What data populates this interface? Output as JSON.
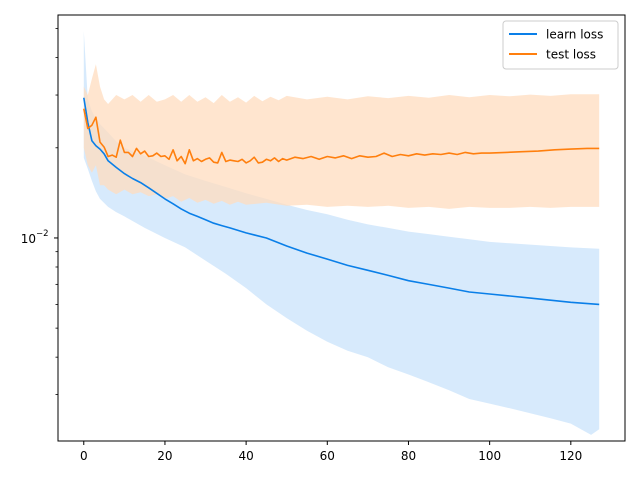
{
  "chart_data": {
    "type": "line",
    "title": "",
    "xlabel": "",
    "ylabel": "",
    "xlim": [
      -6.35,
      133.35
    ],
    "xticks": [
      0,
      20,
      40,
      60,
      80,
      100,
      120
    ],
    "yscale": "log",
    "ylim": [
      0.0021,
      0.0555
    ],
    "yticks": [
      0.01
    ],
    "ytick_labels": [
      "10",
      "−2"
    ],
    "grid": false,
    "legend": "top-right",
    "series": [
      {
        "name": "learn loss",
        "color": "#0a7fe8",
        "band_color": "#c9e3fb",
        "points": [
          [
            0,
            0.0294
          ],
          [
            1,
            0.0243
          ],
          [
            2,
            0.0211
          ],
          [
            3,
            0.0203
          ],
          [
            4,
            0.0198
          ],
          [
            5,
            0.0191
          ],
          [
            6,
            0.0181
          ],
          [
            8,
            0.0172
          ],
          [
            10,
            0.0164
          ],
          [
            12,
            0.0158
          ],
          [
            14,
            0.0153
          ],
          [
            16,
            0.0147
          ],
          [
            18,
            0.0141
          ],
          [
            20,
            0.0135
          ],
          [
            22,
            0.013
          ],
          [
            24,
            0.0125
          ],
          [
            26,
            0.0121
          ],
          [
            28,
            0.0118
          ],
          [
            30,
            0.0115
          ],
          [
            32,
            0.0112
          ],
          [
            34,
            0.011
          ],
          [
            36,
            0.0108
          ],
          [
            38,
            0.0106
          ],
          [
            40,
            0.0104
          ],
          [
            45,
            0.01
          ],
          [
            50,
            0.0094
          ],
          [
            55,
            0.0089
          ],
          [
            60,
            0.0085
          ],
          [
            65,
            0.0081
          ],
          [
            70,
            0.0078
          ],
          [
            75,
            0.0075
          ],
          [
            80,
            0.0072
          ],
          [
            85,
            0.007
          ],
          [
            90,
            0.0068
          ],
          [
            95,
            0.0066
          ],
          [
            100,
            0.0065
          ],
          [
            105,
            0.0064
          ],
          [
            110,
            0.0063
          ],
          [
            115,
            0.0062
          ],
          [
            120,
            0.0061
          ],
          [
            127,
            0.006
          ]
        ],
        "band_upper": [
          [
            0,
            0.049
          ],
          [
            1,
            0.029
          ],
          [
            2,
            0.0265
          ],
          [
            3,
            0.025
          ],
          [
            4,
            0.024
          ],
          [
            6,
            0.0225
          ],
          [
            8,
            0.021
          ],
          [
            10,
            0.02
          ],
          [
            15,
            0.0188
          ],
          [
            20,
            0.0175
          ],
          [
            25,
            0.0163
          ],
          [
            30,
            0.0155
          ],
          [
            35,
            0.0148
          ],
          [
            40,
            0.0141
          ],
          [
            45,
            0.0135
          ],
          [
            50,
            0.0129
          ],
          [
            55,
            0.0124
          ],
          [
            60,
            0.012
          ],
          [
            65,
            0.0115
          ],
          [
            70,
            0.0111
          ],
          [
            75,
            0.0108
          ],
          [
            80,
            0.0105
          ],
          [
            85,
            0.0103
          ],
          [
            90,
            0.0101
          ],
          [
            95,
            0.0099
          ],
          [
            100,
            0.0097
          ],
          [
            105,
            0.0096
          ],
          [
            110,
            0.0095
          ],
          [
            115,
            0.0094
          ],
          [
            120,
            0.0093
          ],
          [
            127,
            0.0092
          ]
        ],
        "band_lower": [
          [
            0,
            0.0185
          ],
          [
            1,
            0.017
          ],
          [
            2,
            0.0155
          ],
          [
            3,
            0.0143
          ],
          [
            4,
            0.0135
          ],
          [
            6,
            0.0127
          ],
          [
            8,
            0.0122
          ],
          [
            10,
            0.0118
          ],
          [
            15,
            0.0108
          ],
          [
            20,
            0.01
          ],
          [
            25,
            0.0093
          ],
          [
            30,
            0.0084
          ],
          [
            35,
            0.0076
          ],
          [
            40,
            0.0068
          ],
          [
            45,
            0.006
          ],
          [
            50,
            0.0054
          ],
          [
            55,
            0.0049
          ],
          [
            60,
            0.0045
          ],
          [
            65,
            0.0042
          ],
          [
            70,
            0.004
          ],
          [
            75,
            0.0037
          ],
          [
            80,
            0.0035
          ],
          [
            85,
            0.0033
          ],
          [
            90,
            0.0031
          ],
          [
            95,
            0.0029
          ],
          [
            100,
            0.0028
          ],
          [
            105,
            0.0027
          ],
          [
            110,
            0.0026
          ],
          [
            115,
            0.0025
          ],
          [
            120,
            0.0024
          ],
          [
            125,
            0.0022
          ],
          [
            127,
            0.0023
          ]
        ]
      },
      {
        "name": "test loss",
        "color": "#ff7f0e",
        "band_color": "#ffdcbf",
        "points": [
          [
            0,
            0.027
          ],
          [
            1,
            0.0232
          ],
          [
            2,
            0.0238
          ],
          [
            3,
            0.0253
          ],
          [
            4,
            0.0209
          ],
          [
            5,
            0.0201
          ],
          [
            6,
            0.0187
          ],
          [
            7,
            0.0189
          ],
          [
            8,
            0.0186
          ],
          [
            9,
            0.0212
          ],
          [
            10,
            0.0193
          ],
          [
            11,
            0.0193
          ],
          [
            12,
            0.0187
          ],
          [
            13,
            0.0199
          ],
          [
            14,
            0.0191
          ],
          [
            15,
            0.0195
          ],
          [
            16,
            0.0187
          ],
          [
            17,
            0.0188
          ],
          [
            18,
            0.0192
          ],
          [
            19,
            0.0187
          ],
          [
            20,
            0.0188
          ],
          [
            21,
            0.0183
          ],
          [
            22,
            0.0197
          ],
          [
            23,
            0.0181
          ],
          [
            24,
            0.0187
          ],
          [
            25,
            0.0177
          ],
          [
            26,
            0.0197
          ],
          [
            27,
            0.0181
          ],
          [
            28,
            0.0184
          ],
          [
            29,
            0.018
          ],
          [
            30,
            0.0183
          ],
          [
            31,
            0.0185
          ],
          [
            32,
            0.0179
          ],
          [
            33,
            0.0178
          ],
          [
            34,
            0.0193
          ],
          [
            35,
            0.018
          ],
          [
            36,
            0.0182
          ],
          [
            37,
            0.0181
          ],
          [
            38,
            0.018
          ],
          [
            39,
            0.0183
          ],
          [
            40,
            0.0178
          ],
          [
            41,
            0.0181
          ],
          [
            42,
            0.0186
          ],
          [
            43,
            0.0178
          ],
          [
            44,
            0.0179
          ],
          [
            45,
            0.0183
          ],
          [
            46,
            0.0181
          ],
          [
            47,
            0.0185
          ],
          [
            48,
            0.018
          ],
          [
            49,
            0.0184
          ],
          [
            50,
            0.0182
          ],
          [
            52,
            0.0186
          ],
          [
            54,
            0.0184
          ],
          [
            56,
            0.0187
          ],
          [
            58,
            0.0183
          ],
          [
            60,
            0.0187
          ],
          [
            62,
            0.0185
          ],
          [
            64,
            0.0188
          ],
          [
            66,
            0.0184
          ],
          [
            68,
            0.0188
          ],
          [
            70,
            0.0186
          ],
          [
            72,
            0.0187
          ],
          [
            74,
            0.0192
          ],
          [
            76,
            0.0187
          ],
          [
            78,
            0.019
          ],
          [
            80,
            0.0188
          ],
          [
            82,
            0.0191
          ],
          [
            84,
            0.0189
          ],
          [
            86,
            0.0191
          ],
          [
            88,
            0.019
          ],
          [
            90,
            0.0192
          ],
          [
            92,
            0.019
          ],
          [
            94,
            0.0193
          ],
          [
            96,
            0.0191
          ],
          [
            98,
            0.0192
          ],
          [
            100,
            0.0192
          ],
          [
            104,
            0.0193
          ],
          [
            108,
            0.0194
          ],
          [
            112,
            0.0195
          ],
          [
            116,
            0.0197
          ],
          [
            120,
            0.0198
          ],
          [
            124,
            0.0199
          ],
          [
            127,
            0.0199
          ]
        ],
        "band_upper": [
          [
            0,
            0.032
          ],
          [
            1,
            0.03
          ],
          [
            2,
            0.034
          ],
          [
            3,
            0.038
          ],
          [
            4,
            0.032
          ],
          [
            5,
            0.029
          ],
          [
            6,
            0.028
          ],
          [
            8,
            0.03
          ],
          [
            10,
            0.029
          ],
          [
            12,
            0.03
          ],
          [
            14,
            0.0285
          ],
          [
            16,
            0.03
          ],
          [
            18,
            0.0285
          ],
          [
            20,
            0.029
          ],
          [
            22,
            0.03
          ],
          [
            24,
            0.0285
          ],
          [
            26,
            0.03
          ],
          [
            28,
            0.0285
          ],
          [
            30,
            0.0295
          ],
          [
            32,
            0.0282
          ],
          [
            34,
            0.03
          ],
          [
            36,
            0.0285
          ],
          [
            38,
            0.0295
          ],
          [
            40,
            0.0283
          ],
          [
            42,
            0.0298
          ],
          [
            44,
            0.0286
          ],
          [
            46,
            0.0296
          ],
          [
            48,
            0.0288
          ],
          [
            50,
            0.0298
          ],
          [
            55,
            0.029
          ],
          [
            60,
            0.0296
          ],
          [
            65,
            0.029
          ],
          [
            70,
            0.0297
          ],
          [
            75,
            0.0293
          ],
          [
            80,
            0.0298
          ],
          [
            85,
            0.0294
          ],
          [
            90,
            0.03
          ],
          [
            95,
            0.0295
          ],
          [
            100,
            0.03
          ],
          [
            105,
            0.0297
          ],
          [
            110,
            0.0301
          ],
          [
            115,
            0.0298
          ],
          [
            120,
            0.0302
          ],
          [
            127,
            0.0302
          ]
        ],
        "band_lower": [
          [
            0,
            0.02
          ],
          [
            1,
            0.0175
          ],
          [
            2,
            0.0165
          ],
          [
            3,
            0.0175
          ],
          [
            4,
            0.015
          ],
          [
            5,
            0.015
          ],
          [
            6,
            0.0145
          ],
          [
            8,
            0.014
          ],
          [
            10,
            0.0145
          ],
          [
            12,
            0.014
          ],
          [
            14,
            0.0142
          ],
          [
            16,
            0.0138
          ],
          [
            18,
            0.014
          ],
          [
            20,
            0.0135
          ],
          [
            22,
            0.0138
          ],
          [
            24,
            0.0132
          ],
          [
            26,
            0.0136
          ],
          [
            28,
            0.0131
          ],
          [
            30,
            0.0134
          ],
          [
            32,
            0.013
          ],
          [
            34,
            0.0133
          ],
          [
            36,
            0.0129
          ],
          [
            38,
            0.0132
          ],
          [
            40,
            0.0129
          ],
          [
            45,
            0.0131
          ],
          [
            50,
            0.0128
          ],
          [
            55,
            0.0129
          ],
          [
            60,
            0.0127
          ],
          [
            65,
            0.0128
          ],
          [
            70,
            0.0127
          ],
          [
            75,
            0.0128
          ],
          [
            80,
            0.0126
          ],
          [
            85,
            0.0127
          ],
          [
            90,
            0.0125
          ],
          [
            95,
            0.0127
          ],
          [
            100,
            0.0126
          ],
          [
            105,
            0.0126
          ],
          [
            110,
            0.0127
          ],
          [
            115,
            0.0126
          ],
          [
            120,
            0.0127
          ],
          [
            127,
            0.0127
          ]
        ]
      }
    ]
  }
}
